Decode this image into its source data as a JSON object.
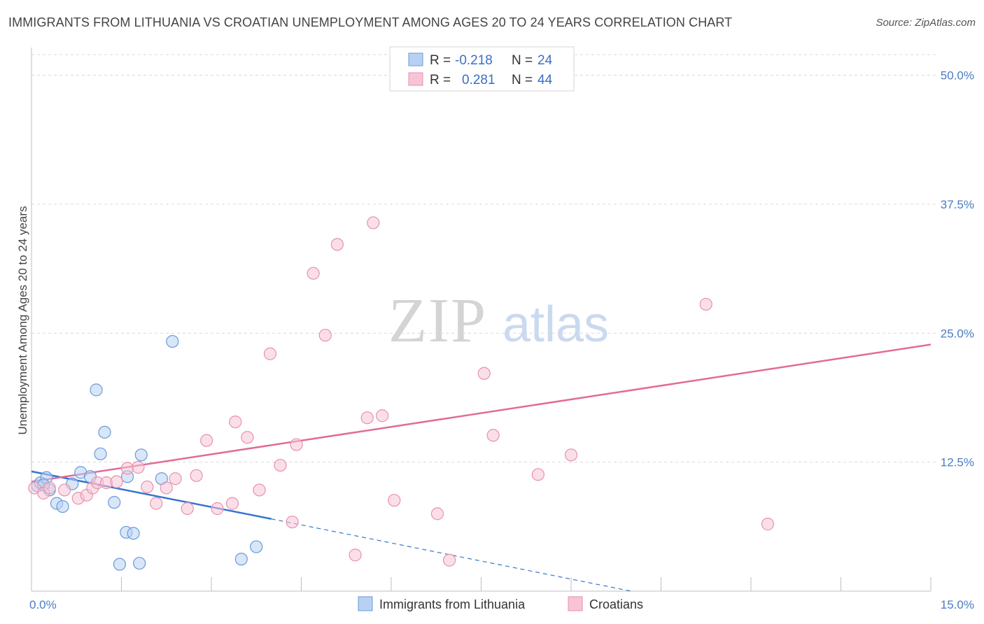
{
  "header": {
    "title": "IMMIGRANTS FROM LITHUANIA VS CROATIAN UNEMPLOYMENT AMONG AGES 20 TO 24 YEARS CORRELATION CHART",
    "source": "Source: ZipAtlas.com"
  },
  "watermark": {
    "zip": "ZIP",
    "atlas": "atlas"
  },
  "colors": {
    "blue_fill": "#b8d1f3",
    "blue_stroke": "#6a9ad8",
    "blue_line": "#3574cf",
    "pink_fill": "#f8c4d5",
    "pink_stroke": "#e691ad",
    "pink_line": "#e26b98",
    "tick_text": "#4a7cc2",
    "grid": "#d9d9d9"
  },
  "legend_top": {
    "rows": [
      {
        "r_label": "R =",
        "r_value": "-0.218",
        "n_label": "N =",
        "n_value": "24"
      },
      {
        "r_label": "R =",
        "r_value": "0.281",
        "n_label": "N =",
        "n_value": "44"
      }
    ]
  },
  "chart_data": {
    "type": "scatter",
    "title": "IMMIGRANTS FROM LITHUANIA VS CROATIAN UNEMPLOYMENT AMONG AGES 20 TO 24 YEARS CORRELATION CHART",
    "xlabel": "",
    "ylabel": "Unemployment Among Ages 20 to 24 years",
    "xlim": [
      0,
      15
    ],
    "ylim": [
      0,
      52
    ],
    "x_tick_labels": [
      "0.0%",
      "15.0%"
    ],
    "y_ticks": [
      12.5,
      25.0,
      37.5,
      50.0
    ],
    "y_tick_labels": [
      "12.5%",
      "25.0%",
      "37.5%",
      "50.0%"
    ],
    "grid": true,
    "series": [
      {
        "name": "Immigrants from Lithuania",
        "color": "blue",
        "points": [
          [
            0.1,
            10.2
          ],
          [
            0.15,
            10.5
          ],
          [
            0.25,
            11.0
          ],
          [
            0.3,
            9.8
          ],
          [
            0.42,
            8.5
          ],
          [
            0.52,
            8.2
          ],
          [
            0.68,
            10.4
          ],
          [
            0.82,
            11.5
          ],
          [
            0.98,
            11.1
          ],
          [
            1.08,
            19.5
          ],
          [
            1.15,
            13.3
          ],
          [
            1.22,
            15.4
          ],
          [
            1.38,
            8.6
          ],
          [
            1.58,
            5.7
          ],
          [
            1.6,
            11.1
          ],
          [
            1.7,
            5.6
          ],
          [
            1.83,
            13.2
          ],
          [
            1.8,
            2.7
          ],
          [
            1.47,
            2.6
          ],
          [
            2.17,
            10.9
          ],
          [
            2.35,
            24.2
          ],
          [
            3.5,
            3.1
          ],
          [
            3.75,
            4.3
          ],
          [
            0.2,
            10.3
          ]
        ],
        "trend": {
          "x0": 0.0,
          "y0": 11.6,
          "x1": 4.0,
          "y1": 7.0,
          "dash_x1": 10.0,
          "dash_y1": 0.0
        }
      },
      {
        "name": "Croatians",
        "color": "pink",
        "points": [
          [
            0.05,
            10.0
          ],
          [
            0.2,
            9.5
          ],
          [
            0.3,
            10.0
          ],
          [
            0.55,
            9.8
          ],
          [
            0.78,
            9.0
          ],
          [
            0.92,
            9.3
          ],
          [
            1.02,
            10.0
          ],
          [
            1.1,
            10.5
          ],
          [
            1.25,
            10.5
          ],
          [
            1.42,
            10.6
          ],
          [
            1.6,
            11.9
          ],
          [
            1.78,
            12.0
          ],
          [
            1.93,
            10.1
          ],
          [
            2.08,
            8.5
          ],
          [
            2.25,
            10.0
          ],
          [
            2.4,
            10.9
          ],
          [
            2.6,
            8.0
          ],
          [
            2.75,
            11.2
          ],
          [
            2.92,
            14.6
          ],
          [
            3.1,
            8.0
          ],
          [
            3.35,
            8.5
          ],
          [
            3.4,
            16.4
          ],
          [
            3.6,
            14.9
          ],
          [
            3.8,
            9.8
          ],
          [
            3.98,
            23.0
          ],
          [
            4.15,
            12.2
          ],
          [
            4.35,
            6.7
          ],
          [
            4.42,
            14.2
          ],
          [
            4.7,
            30.8
          ],
          [
            4.9,
            24.8
          ],
          [
            5.1,
            33.6
          ],
          [
            5.4,
            3.5
          ],
          [
            5.6,
            16.8
          ],
          [
            5.7,
            35.7
          ],
          [
            5.85,
            17.0
          ],
          [
            6.05,
            8.8
          ],
          [
            6.77,
            7.5
          ],
          [
            6.97,
            3.0
          ],
          [
            7.55,
            21.1
          ],
          [
            7.7,
            15.1
          ],
          [
            8.45,
            11.3
          ],
          [
            9.0,
            13.2
          ],
          [
            11.25,
            27.8
          ],
          [
            12.28,
            6.5
          ]
        ],
        "trend": {
          "x0": 0.0,
          "y0": 10.6,
          "x1": 15.0,
          "y1": 23.9
        }
      }
    ]
  },
  "legend_bottom": {
    "items": [
      {
        "label": "Immigrants from Lithuania"
      },
      {
        "label": "Croatians"
      }
    ]
  }
}
